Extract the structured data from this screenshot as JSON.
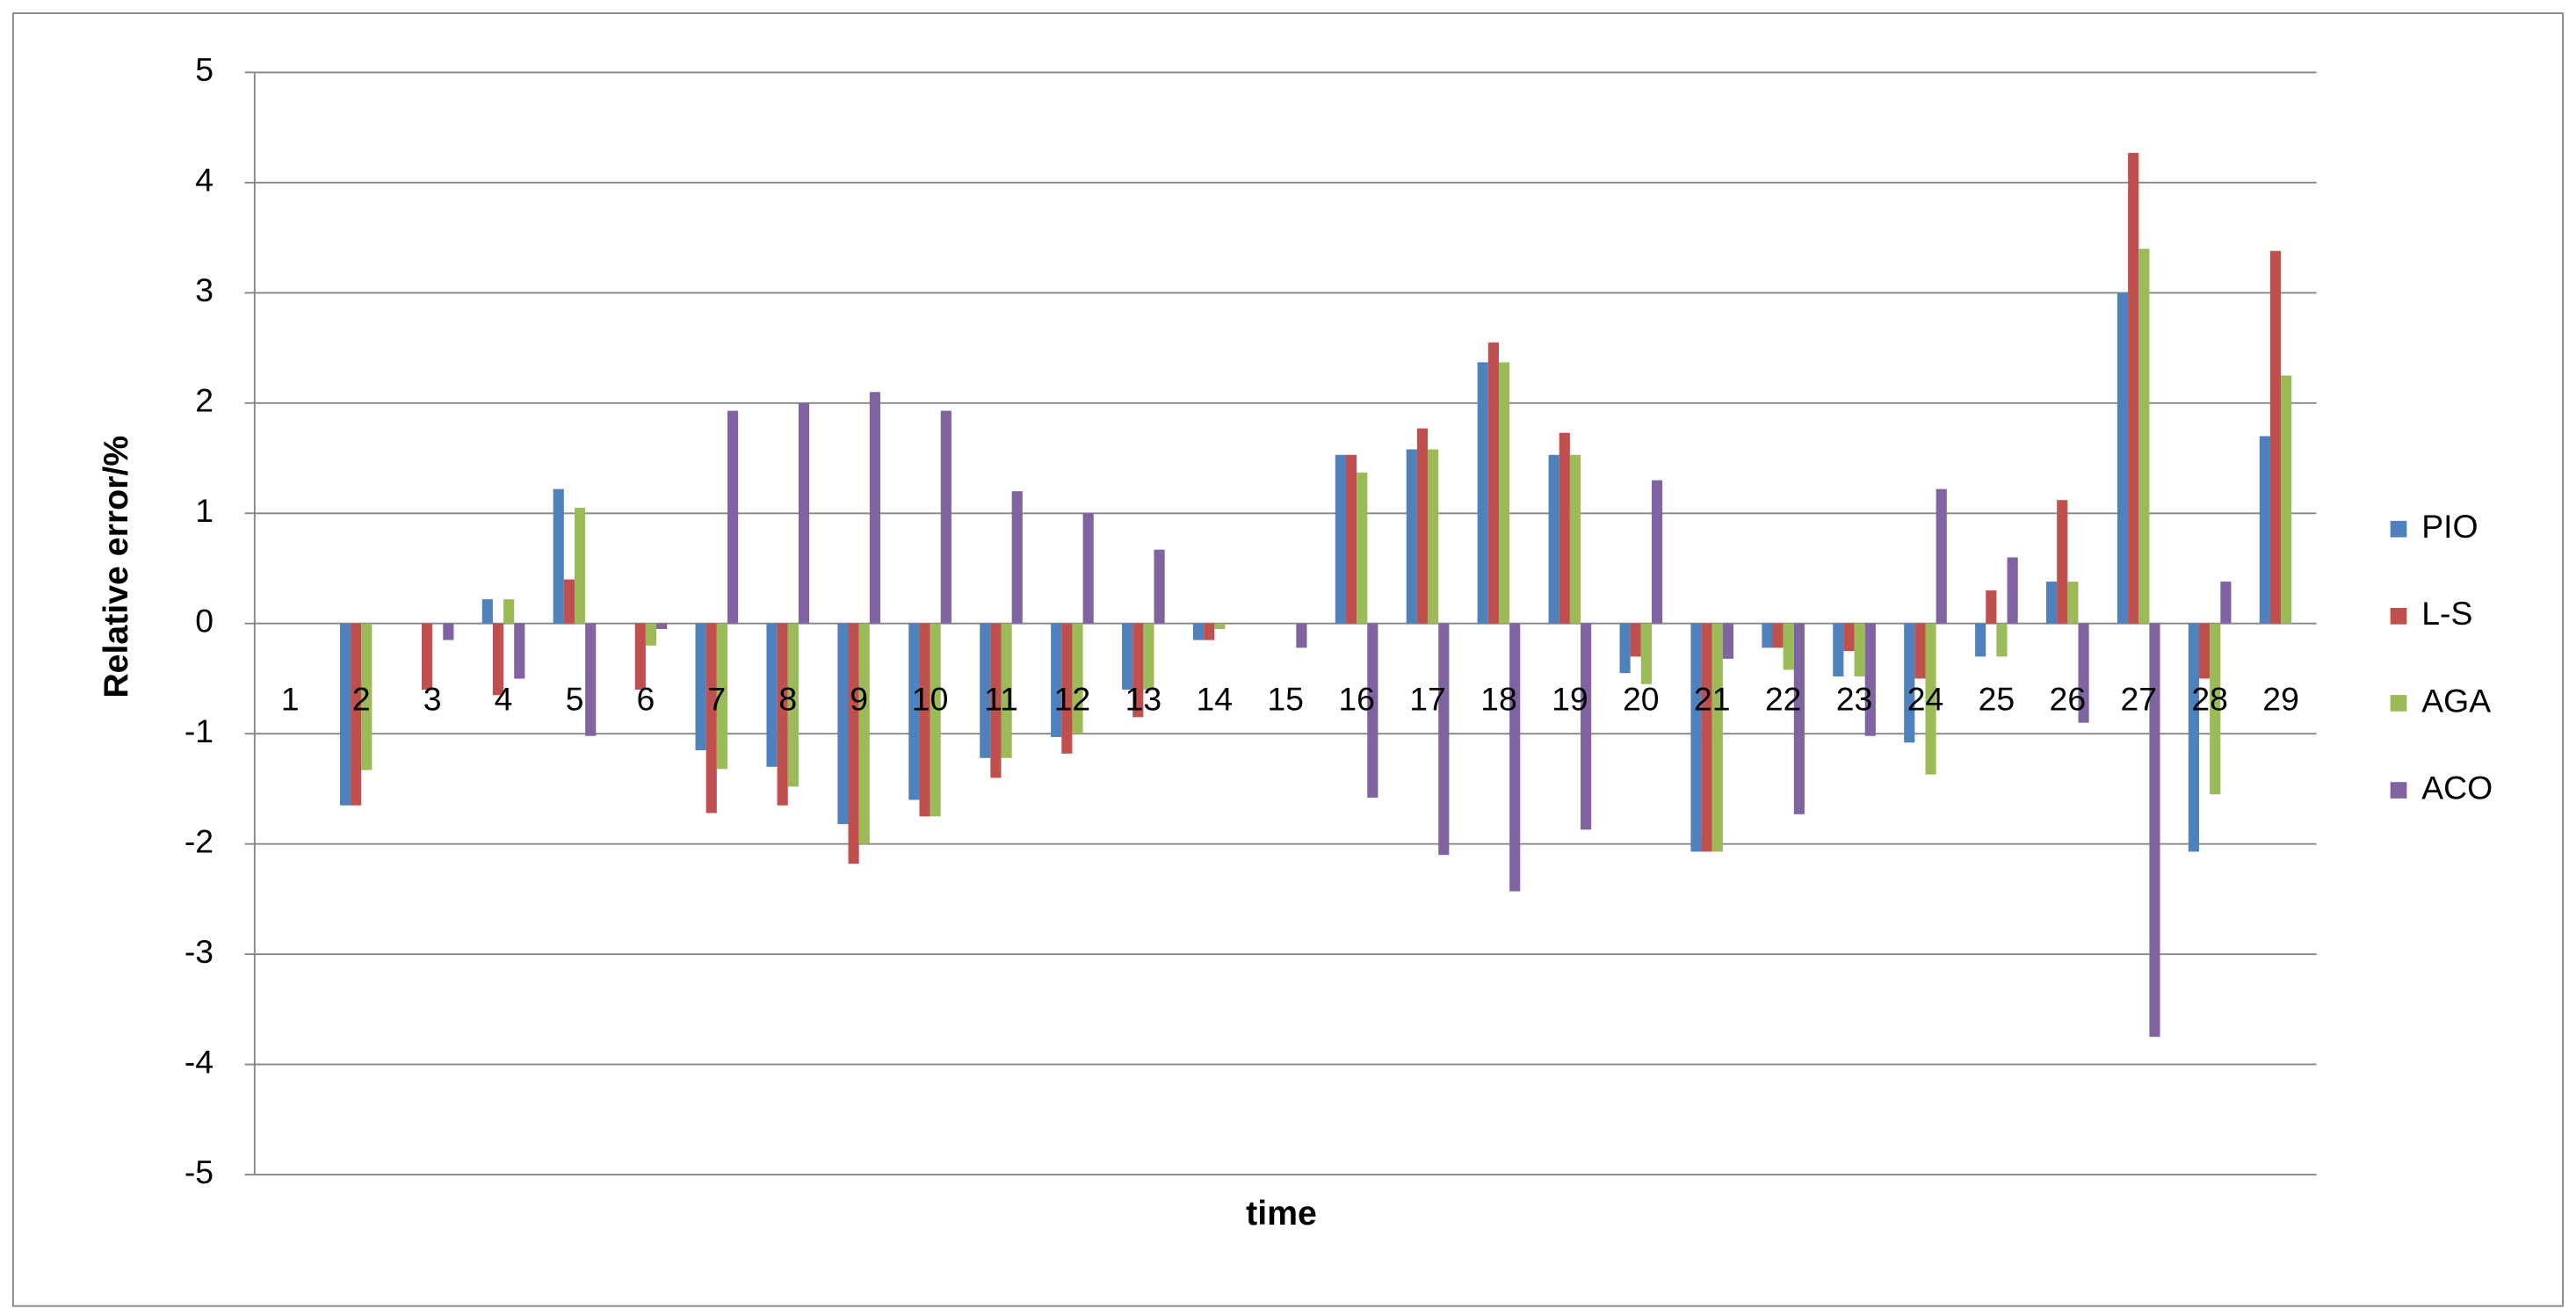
{
  "chart_data": {
    "type": "bar",
    "x_label": "time",
    "y_label": "Relative error/%",
    "categories": [
      "1",
      "2",
      "3",
      "4",
      "5",
      "6",
      "7",
      "8",
      "9",
      "10",
      "11",
      "12",
      "13",
      "14",
      "15",
      "16",
      "17",
      "18",
      "19",
      "20",
      "21",
      "22",
      "23",
      "24",
      "25",
      "26",
      "27",
      "28",
      "29"
    ],
    "series": [
      {
        "name": "PIO",
        "color": "#4f81bd",
        "values": [
          0,
          -1.65,
          0,
          0.22,
          1.22,
          0,
          -1.15,
          -1.3,
          -1.82,
          -1.6,
          -1.22,
          -1.03,
          -0.6,
          -0.15,
          0,
          1.53,
          1.58,
          2.37,
          1.53,
          -0.45,
          -2.07,
          -0.22,
          -0.48,
          -1.08,
          -0.3,
          0.38,
          3.0,
          -2.07,
          1.7
        ]
      },
      {
        "name": "L-S",
        "color": "#c0504d",
        "values": [
          0,
          -1.65,
          -0.6,
          -0.65,
          0.4,
          -0.6,
          -1.72,
          -1.65,
          -2.18,
          -1.75,
          -1.4,
          -1.18,
          -0.85,
          -0.15,
          0,
          1.53,
          1.77,
          2.55,
          1.73,
          -0.3,
          -2.07,
          -0.22,
          -0.25,
          -0.5,
          0.3,
          1.12,
          4.27,
          -0.5,
          3.38
        ]
      },
      {
        "name": "AGA",
        "color": "#9bbb59",
        "values": [
          0,
          -1.33,
          0,
          0.22,
          1.05,
          -0.2,
          -1.32,
          -1.48,
          -2.0,
          -1.75,
          -1.22,
          -1.0,
          -0.6,
          -0.05,
          0,
          1.37,
          1.58,
          2.37,
          1.53,
          -0.55,
          -2.07,
          -0.42,
          -0.48,
          -1.37,
          -0.3,
          0.38,
          3.4,
          -1.55,
          2.25
        ]
      },
      {
        "name": "ACO",
        "color": "#8064a2",
        "values": [
          0,
          0,
          -0.15,
          -0.5,
          -1.02,
          -0.05,
          1.93,
          2.0,
          2.1,
          1.93,
          1.2,
          1.0,
          0.67,
          0,
          -0.22,
          -1.58,
          -2.1,
          -2.43,
          -1.87,
          1.3,
          -0.32,
          -1.73,
          -1.02,
          1.22,
          0.6,
          -0.9,
          -3.75,
          0.38,
          0
        ]
      }
    ],
    "ylim": [
      -5,
      5
    ],
    "yticks": [
      -5,
      -4,
      -3,
      -2,
      -1,
      0,
      1,
      2,
      3,
      4,
      5
    ],
    "grid": true,
    "legend": "right"
  }
}
